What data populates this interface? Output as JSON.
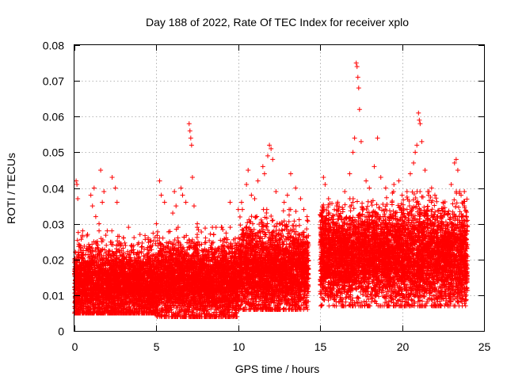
{
  "chart_data": {
    "type": "scatter",
    "title": "Day 188 of 2022, Rate Of TEC Index for receiver xplo",
    "xlabel": "GPS time / hours",
    "ylabel": "ROTI / TECUs",
    "xlim": [
      0,
      25
    ],
    "ylim": [
      0,
      0.08
    ],
    "xticks": [
      0,
      5,
      10,
      15,
      20,
      25
    ],
    "yticks": [
      0,
      0.01,
      0.02,
      0.03,
      0.04,
      0.05,
      0.06,
      0.07,
      0.08
    ],
    "xtick_labels": [
      "0",
      "5",
      "10",
      "15",
      "20",
      "25"
    ],
    "ytick_labels": [
      "0",
      "0.01",
      "0.02",
      "0.03",
      "0.04",
      "0.05",
      "0.06",
      "0.07",
      "0.08"
    ],
    "grid": true,
    "marker": "+",
    "marker_color": "#ff0000",
    "data_gap_hours": [
      14.3,
      15.0
    ],
    "series": [
      {
        "name": "ROTI",
        "points": [
          [
            0.1,
            0.042
          ],
          [
            0.15,
            0.041
          ],
          [
            0.2,
            0.037
          ],
          [
            0.3,
            0.024
          ],
          [
            0.5,
            0.028
          ],
          [
            0.8,
            0.027
          ],
          [
            1.0,
            0.038
          ],
          [
            1.1,
            0.035
          ],
          [
            1.2,
            0.04
          ],
          [
            1.3,
            0.032
          ],
          [
            1.5,
            0.03
          ],
          [
            1.6,
            0.045
          ],
          [
            1.7,
            0.036
          ],
          [
            1.8,
            0.039
          ],
          [
            2.0,
            0.028
          ],
          [
            2.3,
            0.043
          ],
          [
            2.5,
            0.04
          ],
          [
            2.6,
            0.036
          ],
          [
            3.0,
            0.026
          ],
          [
            3.3,
            0.029
          ],
          [
            3.5,
            0.024
          ],
          [
            4.0,
            0.027
          ],
          [
            4.5,
            0.026
          ],
          [
            5.0,
            0.03
          ],
          [
            5.2,
            0.042
          ],
          [
            5.3,
            0.038
          ],
          [
            5.5,
            0.036
          ],
          [
            5.8,
            0.025
          ],
          [
            6.0,
            0.033
          ],
          [
            6.1,
            0.039
          ],
          [
            6.2,
            0.035
          ],
          [
            6.5,
            0.04
          ],
          [
            6.6,
            0.038
          ],
          [
            6.8,
            0.036
          ],
          [
            7.0,
            0.058
          ],
          [
            7.05,
            0.056
          ],
          [
            7.1,
            0.054
          ],
          [
            7.15,
            0.052
          ],
          [
            7.2,
            0.043
          ],
          [
            7.3,
            0.035
          ],
          [
            7.5,
            0.03
          ],
          [
            8.0,
            0.026
          ],
          [
            8.5,
            0.027
          ],
          [
            9.0,
            0.029
          ],
          [
            9.5,
            0.036
          ],
          [
            10.0,
            0.034
          ],
          [
            10.2,
            0.036
          ],
          [
            10.5,
            0.041
          ],
          [
            10.6,
            0.045
          ],
          [
            10.8,
            0.038
          ],
          [
            11.0,
            0.037
          ],
          [
            11.2,
            0.042
          ],
          [
            11.5,
            0.046
          ],
          [
            11.6,
            0.044
          ],
          [
            11.8,
            0.049
          ],
          [
            11.9,
            0.052
          ],
          [
            12.0,
            0.051
          ],
          [
            12.1,
            0.048
          ],
          [
            12.3,
            0.039
          ],
          [
            12.8,
            0.036
          ],
          [
            13.0,
            0.038
          ],
          [
            13.2,
            0.044
          ],
          [
            13.5,
            0.04
          ],
          [
            13.8,
            0.037
          ],
          [
            14.0,
            0.034
          ],
          [
            14.2,
            0.032
          ],
          [
            15.2,
            0.043
          ],
          [
            15.3,
            0.041
          ],
          [
            15.5,
            0.033
          ],
          [
            16.0,
            0.035
          ],
          [
            16.5,
            0.039
          ],
          [
            16.8,
            0.044
          ],
          [
            17.0,
            0.05
          ],
          [
            17.1,
            0.054
          ],
          [
            17.2,
            0.075
          ],
          [
            17.25,
            0.074
          ],
          [
            17.3,
            0.071
          ],
          [
            17.35,
            0.068
          ],
          [
            17.4,
            0.062
          ],
          [
            17.5,
            0.053
          ],
          [
            17.8,
            0.042
          ],
          [
            18.0,
            0.04
          ],
          [
            18.3,
            0.046
          ],
          [
            18.5,
            0.054
          ],
          [
            18.7,
            0.043
          ],
          [
            19.0,
            0.04
          ],
          [
            19.5,
            0.041
          ],
          [
            19.8,
            0.042
          ],
          [
            20.0,
            0.038
          ],
          [
            20.3,
            0.039
          ],
          [
            20.5,
            0.044
          ],
          [
            20.7,
            0.047
          ],
          [
            20.8,
            0.05
          ],
          [
            20.9,
            0.052
          ],
          [
            21.0,
            0.061
          ],
          [
            21.05,
            0.059
          ],
          [
            21.1,
            0.058
          ],
          [
            21.2,
            0.053
          ],
          [
            21.4,
            0.045
          ],
          [
            21.8,
            0.04
          ],
          [
            22.0,
            0.038
          ],
          [
            22.5,
            0.036
          ],
          [
            23.0,
            0.041
          ],
          [
            23.2,
            0.047
          ],
          [
            23.3,
            0.048
          ],
          [
            23.4,
            0.045
          ],
          [
            23.6,
            0.038
          ],
          [
            23.8,
            0.035
          ],
          [
            23.9,
            0.032
          ]
        ],
        "dense_band": {
          "description": "continuous sampling; one marker per band entry",
          "segments": [
            {
              "x": [
                0.0,
                5.0
              ],
              "y_low": 0.005,
              "y_high": 0.028,
              "y_center": 0.013
            },
            {
              "x": [
                5.0,
                10.0
              ],
              "y_low": 0.004,
              "y_high": 0.029,
              "y_center": 0.014
            },
            {
              "x": [
                10.0,
                14.3
              ],
              "y_low": 0.006,
              "y_high": 0.034,
              "y_center": 0.017
            },
            {
              "x": [
                15.0,
                19.0
              ],
              "y_low": 0.007,
              "y_high": 0.037,
              "y_center": 0.021
            },
            {
              "x": [
                19.0,
                24.0
              ],
              "y_low": 0.007,
              "y_high": 0.039,
              "y_center": 0.021
            }
          ]
        }
      }
    ]
  }
}
